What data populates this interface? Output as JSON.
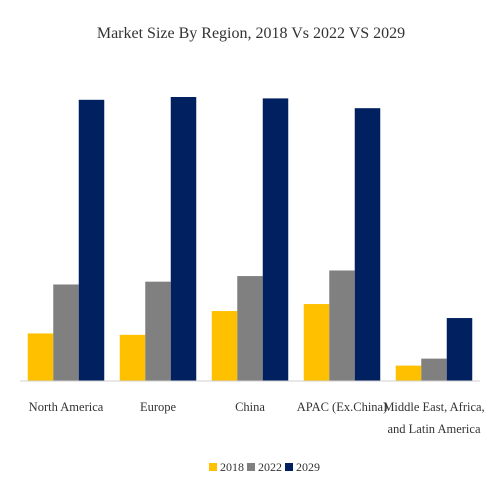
{
  "chart_data": {
    "type": "bar",
    "title": "Market Size By Region, 2018 Vs 2022 VS 2029",
    "xlabel": "",
    "ylabel": "",
    "ylim": [
      0,
      100
    ],
    "grid": false,
    "legend_position": "bottom",
    "categories": [
      [
        "North America"
      ],
      [
        "Europe"
      ],
      [
        "China"
      ],
      [
        "APAC (Ex.China)"
      ],
      [
        "Middle East, Africa,",
        "and Latin America"
      ]
    ],
    "series": [
      {
        "name": "2018",
        "color": "#FFC000",
        "values": [
          17,
          16.5,
          25,
          27.5,
          5.5
        ]
      },
      {
        "name": "2022",
        "color": "#808080",
        "values": [
          34.5,
          35.5,
          37.5,
          39.5,
          8
        ]
      },
      {
        "name": "2029",
        "color": "#002060",
        "values": [
          100.5,
          101.5,
          101,
          97.5,
          22.5
        ]
      }
    ]
  }
}
